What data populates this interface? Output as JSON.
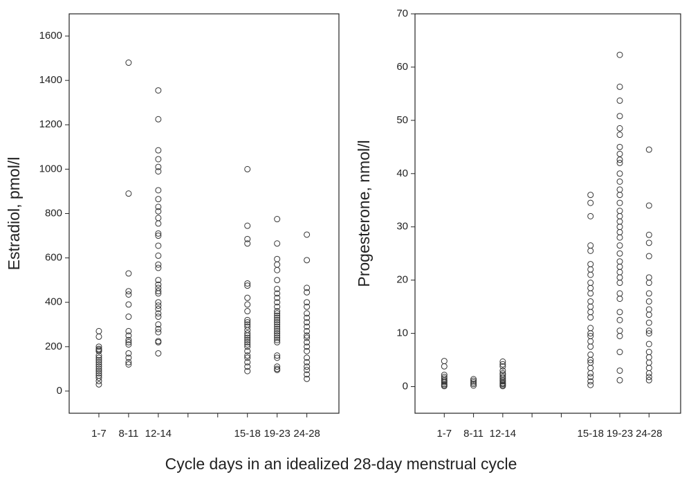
{
  "xlabel": "Cycle days in an idealized 28-day menstrual cycle",
  "chart_data": [
    {
      "type": "strip",
      "ylabel": "Estradiol, pmol/l",
      "categories": [
        "1-7",
        "8-11",
        "12-14",
        null,
        null,
        "15-18",
        "19-23",
        "24-28"
      ],
      "values": [
        [
          270,
          245,
          200,
          190,
          185,
          180,
          160,
          150,
          140,
          130,
          120,
          110,
          100,
          90,
          80,
          70,
          60,
          45,
          30
        ],
        [
          1480,
          890,
          530,
          450,
          435,
          390,
          335,
          270,
          250,
          230,
          220,
          210,
          170,
          150,
          130,
          120
        ],
        [
          1355,
          1225,
          1085,
          1045,
          1010,
          990,
          905,
          865,
          830,
          810,
          780,
          755,
          710,
          700,
          655,
          610,
          570,
          555,
          500,
          480,
          465,
          450,
          440,
          400,
          385,
          370,
          350,
          335,
          300,
          280,
          265,
          225,
          220,
          170
        ],
        null,
        null,
        [
          1000,
          745,
          685,
          665,
          485,
          475,
          420,
          390,
          360,
          320,
          310,
          300,
          290,
          275,
          260,
          250,
          240,
          230,
          220,
          210,
          200,
          180,
          160,
          150,
          130,
          110,
          90
        ],
        [
          775,
          665,
          595,
          570,
          545,
          500,
          460,
          440,
          420,
          400,
          380,
          360,
          350,
          340,
          330,
          320,
          310,
          300,
          290,
          280,
          270,
          260,
          250,
          240,
          230,
          220,
          160,
          150,
          110,
          100,
          95
        ],
        [
          705,
          590,
          465,
          445,
          400,
          380,
          350,
          330,
          310,
          290,
          270,
          250,
          240,
          220,
          200,
          180,
          150,
          130,
          110,
          95,
          75,
          55
        ]
      ],
      "ylim": [
        -100,
        1700
      ],
      "yticks": [
        0,
        200,
        400,
        600,
        800,
        1000,
        1200,
        1400,
        1600
      ]
    },
    {
      "type": "strip",
      "ylabel": "Progesterone, nmol/l",
      "categories": [
        "1-7",
        "8-11",
        "12-14",
        null,
        null,
        "15-18",
        "19-23",
        "24-28"
      ],
      "values": [
        [
          4.8,
          3.8,
          2.2,
          1.8,
          1.5,
          1.2,
          1.0,
          0.8,
          0.5,
          0.3,
          0.1
        ],
        [
          1.4,
          1.1,
          0.8,
          0.5,
          0.2
        ],
        [
          4.7,
          4.2,
          3.8,
          3.0,
          2.5,
          2.2,
          1.8,
          1.5,
          1.2,
          1.0,
          0.7,
          0.5,
          0.3,
          0.1
        ],
        null,
        null,
        [
          36,
          34.5,
          32,
          26.5,
          25.5,
          23,
          22,
          21,
          19.5,
          18.5,
          17.5,
          16,
          15,
          14,
          13,
          11,
          10,
          9.5,
          8.5,
          7.5,
          6,
          5,
          4.5,
          3.5,
          2.5,
          1.8,
          1,
          0.3
        ],
        [
          62.3,
          56.3,
          53.7,
          50.8,
          48.5,
          47.3,
          45,
          43.7,
          42.6,
          42,
          40,
          38.5,
          37,
          36,
          34.5,
          33,
          32,
          31,
          30,
          29,
          28,
          26.5,
          25,
          23.5,
          22.5,
          21.5,
          20.5,
          19.5,
          17.5,
          16.5,
          14,
          12.5,
          10.5,
          9.5,
          6.5,
          3,
          1.2
        ],
        [
          44.5,
          34,
          28.5,
          27,
          24.5,
          20.5,
          19.5,
          17.5,
          16,
          14.5,
          13.5,
          12,
          10.5,
          10,
          8,
          6.5,
          5.5,
          4.5,
          3.5,
          2.5,
          1.8,
          1.2
        ]
      ],
      "ylim": [
        -5,
        70
      ],
      "yticks": [
        0,
        10,
        20,
        30,
        40,
        50,
        60,
        70
      ]
    }
  ]
}
